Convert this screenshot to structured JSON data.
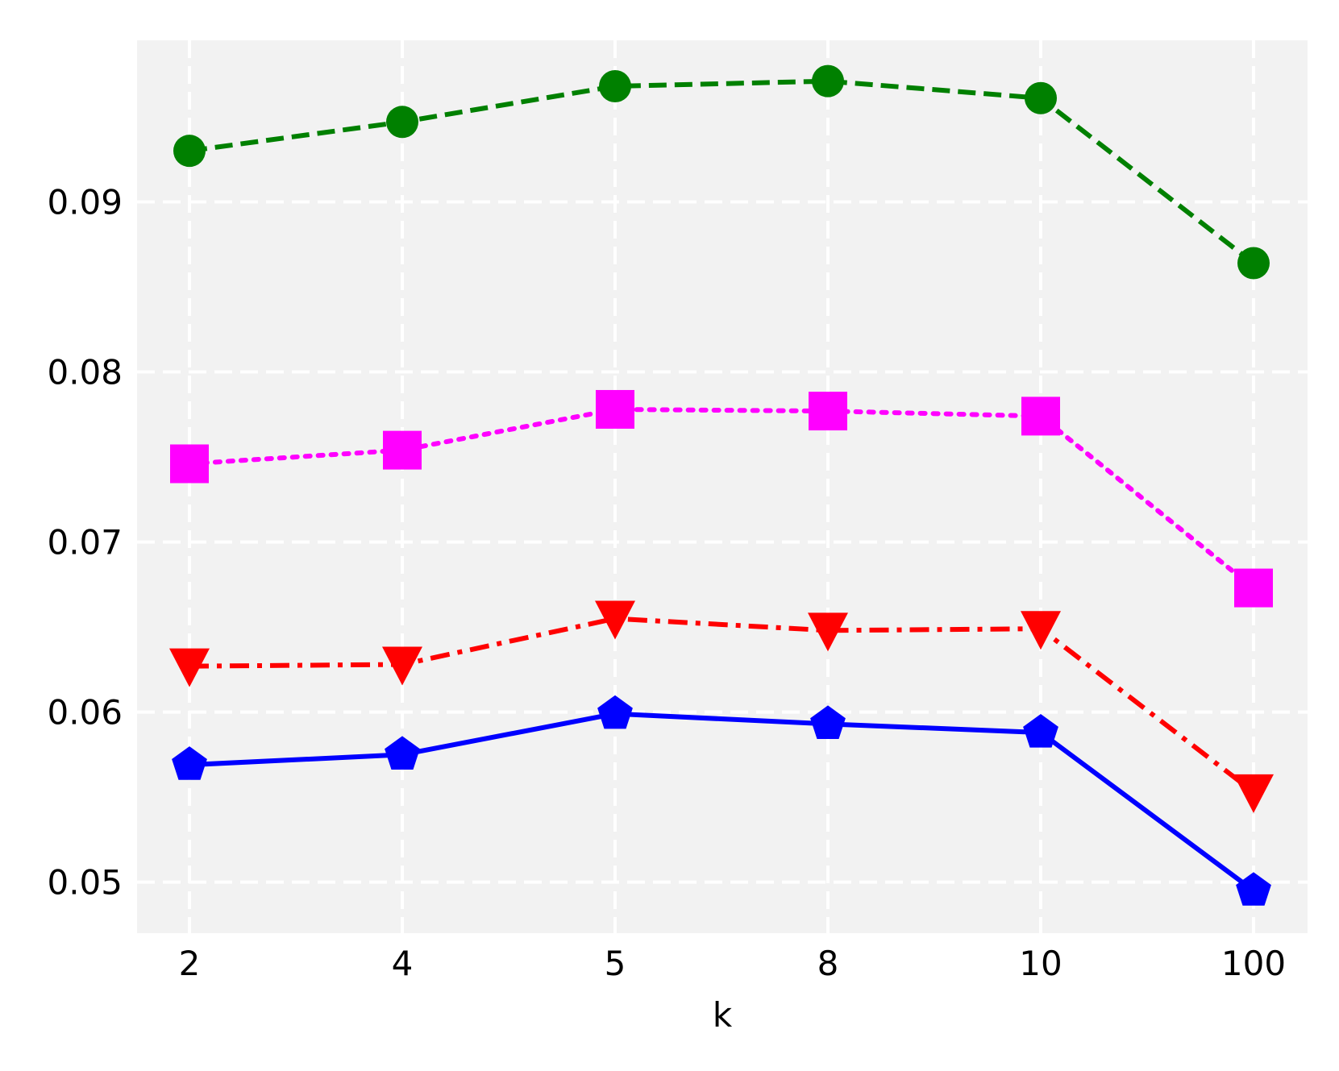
{
  "chart_data": {
    "type": "line",
    "title": "",
    "xlabel": "k",
    "ylabel": "",
    "categories": [
      "2",
      "4",
      "5",
      "8",
      "10",
      "100"
    ],
    "ylim": [
      0.047,
      0.0995
    ],
    "yticks": [
      0.05,
      0.06,
      0.07,
      0.08,
      0.09
    ],
    "ytick_labels": [
      "0.05",
      "0.06",
      "0.07",
      "0.08",
      "0.09"
    ],
    "grid": true,
    "legend": "none",
    "background_color": "#f2f2f2",
    "grid_color": "#ffffff",
    "series": [
      {
        "values": [
          0.093,
          0.0947,
          0.0968,
          0.0971,
          0.0961,
          0.0864
        ],
        "color": "#008000",
        "marker": "circle",
        "line_style": "dashed"
      },
      {
        "values": [
          0.0746,
          0.0754,
          0.0778,
          0.0777,
          0.0774,
          0.0673
        ],
        "color": "#ff00ff",
        "marker": "square",
        "line_style": "dotted"
      },
      {
        "values": [
          0.0627,
          0.0628,
          0.0655,
          0.0648,
          0.0649,
          0.0553
        ],
        "color": "#ff0000",
        "marker": "triangle-down",
        "line_style": "dashdot"
      },
      {
        "values": [
          0.0569,
          0.0575,
          0.0599,
          0.0593,
          0.0588,
          0.0495
        ],
        "color": "#0000ff",
        "marker": "pentagon",
        "line_style": "solid"
      }
    ]
  }
}
